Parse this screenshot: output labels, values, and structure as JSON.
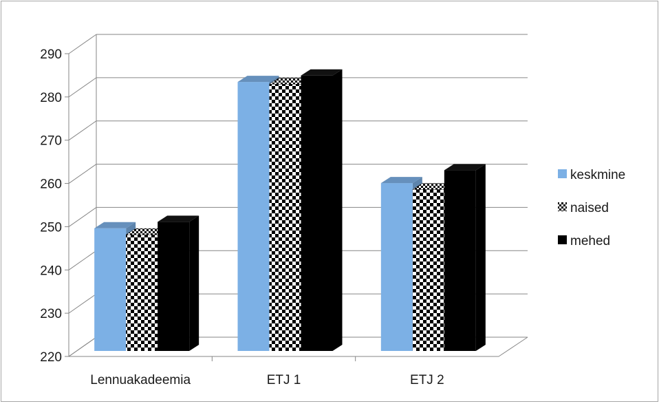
{
  "chart_data": {
    "type": "bar",
    "title": "",
    "xlabel": "",
    "ylabel": "",
    "categories": [
      "Lennuakadeemia",
      "ETJ 1",
      "ETJ 2"
    ],
    "series": [
      {
        "name": "keskmine",
        "values": [
          248.5,
          282.5,
          259
        ],
        "color": "#7cb0e5",
        "pattern": "solid"
      },
      {
        "name": "naised",
        "values": [
          247,
          282,
          257.5
        ],
        "color": "#000000",
        "pattern": "checker"
      },
      {
        "name": "mehed",
        "values": [
          250,
          284,
          262
        ],
        "color": "#000000",
        "pattern": "solid"
      }
    ],
    "ylim": [
      220,
      290
    ],
    "y_ticks": [
      220,
      230,
      240,
      250,
      260,
      270,
      280,
      290
    ],
    "grid": true,
    "legend_position": "right",
    "style": "3d-clustered-column"
  }
}
